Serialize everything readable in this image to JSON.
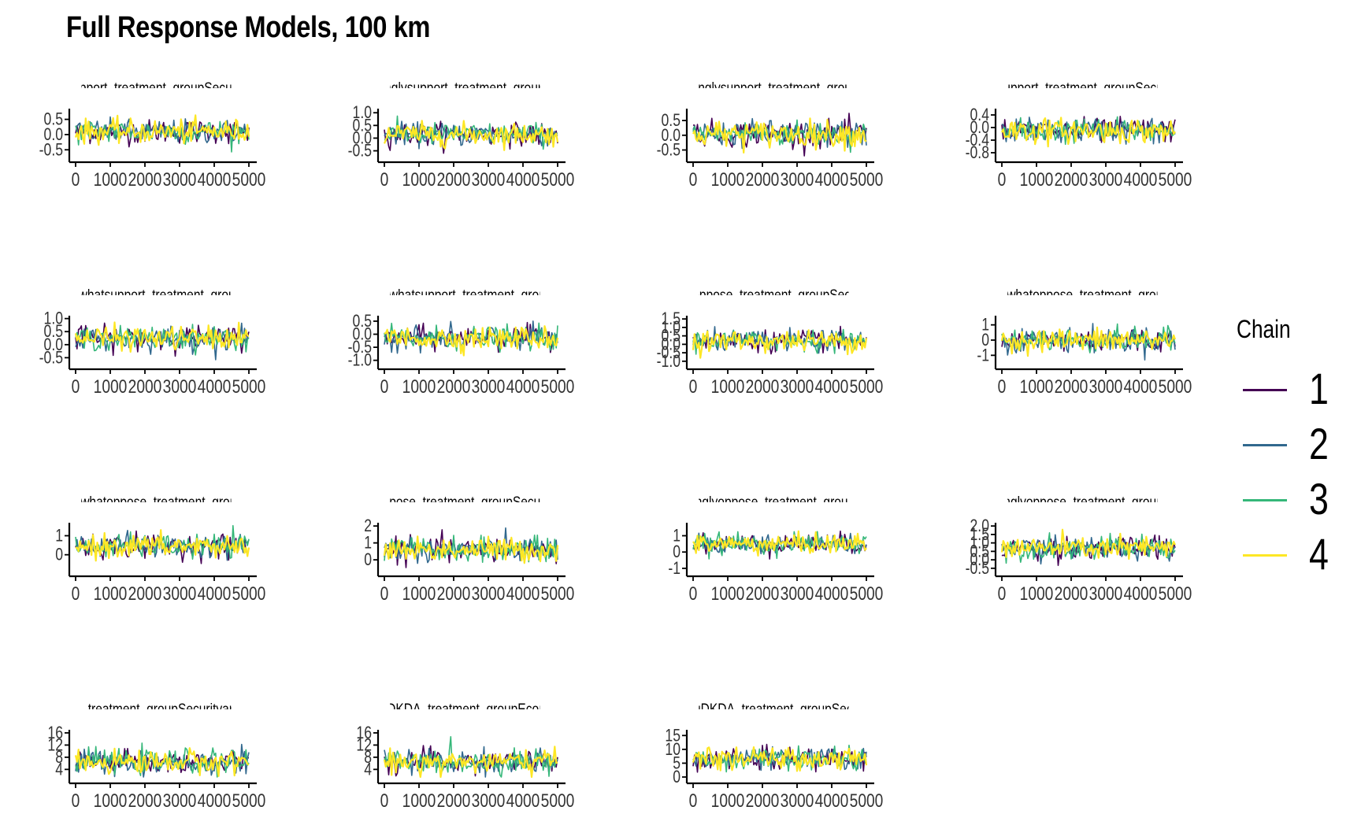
{
  "title": "Full Response Models, 100 km",
  "legend": {
    "title": "Chain",
    "placement": "right",
    "entries": [
      {
        "label": "1",
        "color": "#440154"
      },
      {
        "label": "2",
        "color": "#31688e"
      },
      {
        "label": "3",
        "color": "#35b779"
      },
      {
        "label": "4",
        "color": "#fde725"
      }
    ]
  },
  "chart_data": [
    {
      "type": "line",
      "title": "support_treatment_groupSecurity",
      "xlim": [
        0,
        5000
      ],
      "x_ticks": [
        "0",
        "1000",
        "2000",
        "3000",
        "4000",
        "5000"
      ],
      "y_ticks": [
        -0.5,
        0.0,
        0.5
      ],
      "y_tick_labels": [
        "-0.5",
        "0.0",
        "0.5"
      ],
      "ylim": [
        -0.7,
        0.8
      ],
      "band": {
        "center": 0.1,
        "spread": 0.35
      }
    },
    {
      "type": "line",
      "title": "ronglysupport_treatment_groupEc",
      "xlim": [
        0,
        5000
      ],
      "x_ticks": [
        "0",
        "1000",
        "2000",
        "3000",
        "4000",
        "5000"
      ],
      "y_ticks": [
        -0.5,
        0.0,
        0.5,
        1.0
      ],
      "y_tick_labels": [
        "-0.5",
        "0.0",
        "0.5",
        "1.0"
      ],
      "ylim": [
        -0.7,
        1.1
      ],
      "band": {
        "center": 0.15,
        "spread": 0.4
      }
    },
    {
      "type": "line",
      "title": "tronglysupport_treatment_groupS",
      "xlim": [
        0,
        5000
      ],
      "x_ticks": [
        "0",
        "1000",
        "2000",
        "3000",
        "4000",
        "5000"
      ],
      "y_ticks": [
        -0.5,
        0.0,
        0.5
      ],
      "y_tick_labels": [
        "-0.5",
        "0.0",
        "0.5"
      ],
      "ylim": [
        -0.7,
        0.85
      ],
      "band": {
        "center": 0.05,
        "spread": 0.4
      }
    },
    {
      "type": "line",
      "title": "tsupport_treatment_groupSecurit",
      "xlim": [
        0,
        5000
      ],
      "x_ticks": [
        "0",
        "1000",
        "2000",
        "3000",
        "4000",
        "5000"
      ],
      "y_ticks": [
        -0.8,
        -0.4,
        0.0,
        0.4
      ],
      "y_tick_labels": [
        "-0.8",
        "-0.4",
        "0.0",
        "0.4"
      ],
      "ylim": [
        -0.9,
        0.55
      ],
      "band": {
        "center": -0.1,
        "spread": 0.35
      }
    },
    {
      "type": "line",
      "title": "newhatsupport_treatment_groupE",
      "xlim": [
        0,
        5000
      ],
      "x_ticks": [
        "0",
        "1000",
        "2000",
        "3000",
        "4000",
        "5000"
      ],
      "y_ticks": [
        -0.5,
        0.0,
        0.5,
        1.0
      ],
      "y_tick_labels": [
        "-0.5",
        "0.0",
        "0.5",
        "1.0"
      ],
      "ylim": [
        -0.7,
        1.05
      ],
      "band": {
        "center": 0.25,
        "spread": 0.4
      }
    },
    {
      "type": "line",
      "title": "mewhatsupport_treatment_groupS",
      "xlim": [
        0,
        5000
      ],
      "x_ticks": [
        "0",
        "1000",
        "2000",
        "3000",
        "4000",
        "5000"
      ],
      "y_ticks": [
        -1.0,
        -0.5,
        0.0,
        0.5
      ],
      "y_tick_labels": [
        "-1.0",
        "-0.5",
        "0.0",
        "0.5"
      ],
      "ylim": [
        -1.1,
        0.65
      ],
      "band": {
        "center": -0.15,
        "spread": 0.4
      }
    },
    {
      "type": "line",
      "title": "atoppose_treatment_groupSecurit",
      "xlim": [
        0,
        5000
      ],
      "x_ticks": [
        "0",
        "1000",
        "2000",
        "3000",
        "4000",
        "5000"
      ],
      "y_ticks": [
        -1.0,
        -0.5,
        0.0,
        0.5,
        1.0,
        1.5
      ],
      "y_tick_labels": [
        "-1.0",
        "-0.5",
        "0.0",
        "0.5",
        "1.0",
        "1.5"
      ],
      "ylim": [
        -1.1,
        1.6
      ],
      "band": {
        "center": 0.2,
        "spread": 0.55
      }
    },
    {
      "type": "line",
      "title": "mewhatoppose_treatment_groupE",
      "xlim": [
        0,
        5000
      ],
      "x_ticks": [
        "0",
        "1000",
        "2000",
        "3000",
        "4000",
        "5000"
      ],
      "y_ticks": [
        -1,
        0,
        1
      ],
      "y_tick_labels": [
        "-1",
        "0",
        "1"
      ],
      "ylim": [
        -1.5,
        1.5
      ],
      "band": {
        "center": 0.0,
        "spread": 0.7
      }
    },
    {
      "type": "line",
      "title": "mewhatoppose_treatment_groupS",
      "xlim": [
        0,
        5000
      ],
      "x_ticks": [
        "0",
        "1000",
        "2000",
        "3000",
        "4000",
        "5000"
      ],
      "y_ticks": [
        0,
        1
      ],
      "y_tick_labels": [
        "0",
        "1"
      ],
      "ylim": [
        -0.8,
        1.6
      ],
      "band": {
        "center": 0.45,
        "spread": 0.55
      }
    },
    {
      "type": "line",
      "title": "oppose_treatment_groupSecurity",
      "xlim": [
        0,
        5000
      ],
      "x_ticks": [
        "0",
        "1000",
        "2000",
        "3000",
        "4000",
        "5000"
      ],
      "y_ticks": [
        0,
        1,
        2
      ],
      "y_tick_labels": [
        "0",
        "1",
        "2"
      ],
      "ylim": [
        -0.6,
        2.1
      ],
      "band": {
        "center": 0.6,
        "spread": 0.65
      }
    },
    {
      "type": "line",
      "title": "tronglyoppose_treatment_groupEc",
      "xlim": [
        0,
        5000
      ],
      "x_ticks": [
        "0",
        "1000",
        "2000",
        "3000",
        "4000",
        "5000"
      ],
      "y_ticks": [
        -1,
        0,
        1
      ],
      "y_tick_labels": [
        "-1",
        "0",
        "1"
      ],
      "ylim": [
        -1.1,
        1.7
      ],
      "band": {
        "center": 0.5,
        "spread": 0.55
      }
    },
    {
      "type": "line",
      "title": "tronglyoppose_treatment_groupSe",
      "xlim": [
        0,
        5000
      ],
      "x_ticks": [
        "0",
        "1000",
        "2000",
        "3000",
        "4000",
        "5000"
      ],
      "y_ticks": [
        -0.5,
        0.0,
        0.5,
        1.0,
        1.5,
        2.0
      ],
      "y_tick_labels": [
        "-0.5",
        "0.0",
        "0.5",
        "1.0",
        "1.5",
        "2.0"
      ],
      "ylim": [
        -0.6,
        2.1
      ],
      "band": {
        "center": 0.7,
        "spread": 0.6
      }
    },
    {
      "type": "line",
      "title": "DA_treatment_groupSecurityandE",
      "xlim": [
        0,
        5000
      ],
      "x_ticks": [
        "0",
        "1000",
        "2000",
        "3000",
        "4000",
        "5000"
      ],
      "y_ticks": [
        4,
        8,
        12,
        16
      ],
      "y_tick_labels": [
        "4",
        "8",
        "12",
        "16"
      ],
      "ylim": [
        1.5,
        16.5
      ],
      "band": {
        "center": 6.5,
        "spread": 3.5
      }
    },
    {
      "type": "line",
      "title": "muDKDA_treatment_groupEconom",
      "xlim": [
        0,
        5000
      ],
      "x_ticks": [
        "0",
        "1000",
        "2000",
        "3000",
        "4000",
        "5000"
      ],
      "y_ticks": [
        4,
        8,
        12,
        16
      ],
      "y_tick_labels": [
        "4",
        "8",
        "12",
        "16"
      ],
      "ylim": [
        1.5,
        16.5
      ],
      "band": {
        "center": 6.5,
        "spread": 3.5
      }
    },
    {
      "type": "line",
      "title": "muDKDA_treatment_groupSecuri",
      "xlim": [
        0,
        5000
      ],
      "x_ticks": [
        "0",
        "1000",
        "2000",
        "3000",
        "4000",
        "5000"
      ],
      "y_ticks": [
        0,
        5,
        10,
        15
      ],
      "y_tick_labels": [
        "0",
        "5",
        "10",
        "15"
      ],
      "ylim": [
        0,
        16.5
      ],
      "band": {
        "center": 6.5,
        "spread": 3.5
      }
    }
  ]
}
